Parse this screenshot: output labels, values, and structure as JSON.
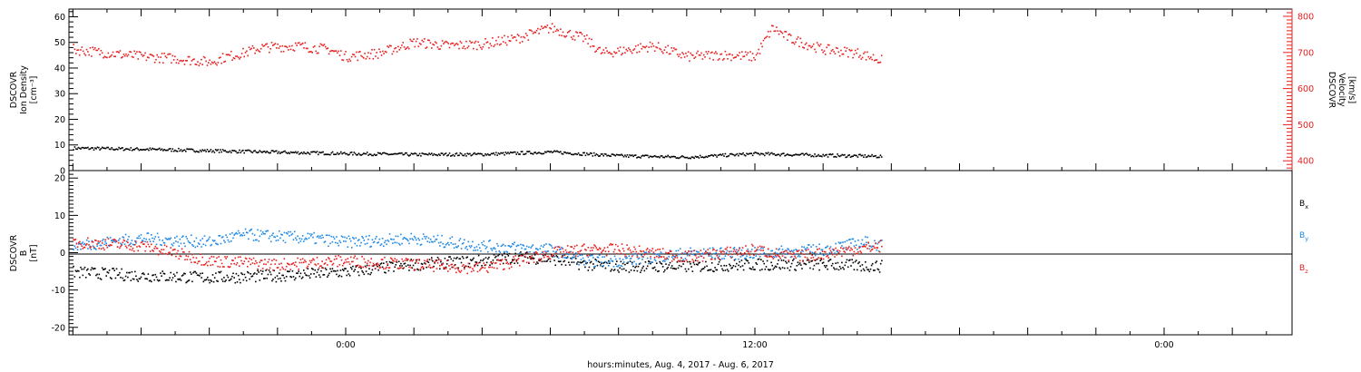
{
  "chart_data": [
    {
      "type": "scatter",
      "xlabel": "hours:minutes, Aug.  4, 2017 - Aug.  6, 2017",
      "x_ticks": [
        "0:00",
        "12:00",
        "0:00"
      ],
      "left_axis": {
        "label_lines": [
          "DSCOVR",
          "Ion Density",
          "[cm⁻³]"
        ],
        "ylim": [
          0,
          63
        ],
        "ticks": [
          "0",
          "10",
          "20",
          "30",
          "40",
          "50",
          "60"
        ]
      },
      "right_axis": {
        "label_lines": [
          "DSCOVR",
          "Velocity",
          "[km/s]"
        ],
        "ylim": [
          373,
          820
        ],
        "ticks": [
          "400",
          "500",
          "600",
          "700",
          "800"
        ],
        "color": "#e8201f"
      },
      "series": [
        {
          "axis": "left",
          "color": "#000000",
          "points": [
            [
              -8,
              9
            ],
            [
              -6,
              8.6
            ],
            [
              -4,
              8
            ],
            [
              -2,
              7.4
            ],
            [
              0,
              6.9
            ],
            [
              2,
              6.5
            ],
            [
              4,
              6.6
            ],
            [
              6,
              7.5
            ],
            [
              8,
              6
            ],
            [
              10,
              5.5
            ],
            [
              12,
              6.8
            ],
            [
              14,
              6.2
            ],
            [
              15.7,
              5.8
            ]
          ]
        },
        {
          "axis": "right",
          "color": "#e8201f",
          "points": [
            [
              -8,
              710
            ],
            [
              -7,
              700
            ],
            [
              -6,
              690
            ],
            [
              -5,
              685
            ],
            [
              -4,
              675
            ],
            [
              -3.5,
              690
            ],
            [
              -3,
              700
            ],
            [
              -2.5,
              715
            ],
            [
              -1.5,
              720
            ],
            [
              -0.5,
              710
            ],
            [
              0,
              690
            ],
            [
              1,
              700
            ],
            [
              2,
              730
            ],
            [
              3,
              720
            ],
            [
              4,
              725
            ],
            [
              5,
              740
            ],
            [
              6,
              770
            ],
            [
              7,
              740
            ],
            [
              7.5,
              700
            ],
            [
              8,
              705
            ],
            [
              9,
              720
            ],
            [
              10,
              690
            ],
            [
              11,
              695
            ],
            [
              12,
              690
            ],
            [
              12.5,
              770
            ],
            [
              13,
              740
            ],
            [
              14,
              710
            ],
            [
              15,
              700
            ],
            [
              15.7,
              680
            ]
          ]
        }
      ]
    },
    {
      "type": "scatter",
      "xlabel": "hours:minutes, Aug.  4, 2017 - Aug.  6, 2017",
      "x_ticks": [
        "0:00",
        "12:00",
        "0:00"
      ],
      "y_axis": {
        "label_lines": [
          "DSCOVR",
          "B",
          "[nT]"
        ],
        "ylim": [
          -22,
          22
        ],
        "ticks": [
          "-20",
          "-10",
          "0",
          "10",
          "20"
        ]
      },
      "zero_line": true,
      "legend": [
        {
          "label": "B",
          "sub": "x",
          "color": "#000000"
        },
        {
          "label": "B",
          "sub": "y",
          "color": "#1e88e5"
        },
        {
          "label": "B",
          "sub": "z",
          "color": "#e8201f"
        }
      ],
      "series": [
        {
          "name": "Bx",
          "color": "#000000",
          "points": [
            [
              -8,
              -5
            ],
            [
              -6,
              -6
            ],
            [
              -4,
              -6.5
            ],
            [
              -2,
              -6
            ],
            [
              0,
              -5
            ],
            [
              2,
              -3
            ],
            [
              4,
              -2
            ],
            [
              5,
              -1
            ],
            [
              6,
              -1.5
            ],
            [
              7,
              -3
            ],
            [
              8,
              -3.5
            ],
            [
              10,
              -3.5
            ],
            [
              12,
              -3
            ],
            [
              14,
              -3
            ],
            [
              15.7,
              -3.5
            ]
          ]
        },
        {
          "name": "By",
          "color": "#1e88e5",
          "points": [
            [
              -8,
              2
            ],
            [
              -6,
              4
            ],
            [
              -4,
              3
            ],
            [
              -3,
              5
            ],
            [
              -2,
              4.5
            ],
            [
              -1,
              4
            ],
            [
              0,
              3
            ],
            [
              2,
              4
            ],
            [
              4,
              2
            ],
            [
              6,
              1
            ],
            [
              7,
              -2
            ],
            [
              8,
              -2
            ],
            [
              10,
              0
            ],
            [
              12,
              0
            ],
            [
              14,
              1
            ],
            [
              15.2,
              3
            ],
            [
              15.7,
              2
            ]
          ]
        },
        {
          "name": "Bz",
          "color": "#e8201f",
          "points": [
            [
              -8,
              3
            ],
            [
              -6,
              2
            ],
            [
              -4,
              -2
            ],
            [
              -2,
              -3
            ],
            [
              0,
              -2
            ],
            [
              2,
              -3
            ],
            [
              4,
              -4
            ],
            [
              6,
              0
            ],
            [
              7,
              1
            ],
            [
              8,
              1
            ],
            [
              10,
              -1
            ],
            [
              12,
              1
            ],
            [
              13,
              -1
            ],
            [
              14,
              0
            ],
            [
              15.7,
              2
            ]
          ]
        }
      ]
    }
  ]
}
